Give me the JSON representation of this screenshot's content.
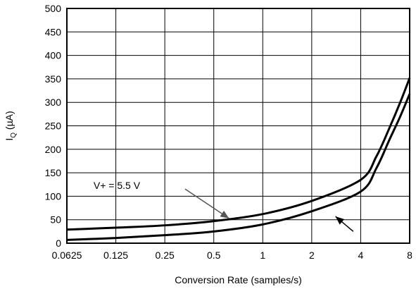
{
  "chart_data": {
    "type": "line",
    "xlabel": "Conversion Rate (samples/s)",
    "ylabel": {
      "main": "I",
      "sub": "Q",
      "unit": " (µA)"
    },
    "x_scale": "log2",
    "xlim": [
      0.0625,
      8
    ],
    "ylim": [
      0,
      500
    ],
    "x_ticks": [
      0.0625,
      0.125,
      0.25,
      0.5,
      1,
      2,
      4,
      8
    ],
    "x_tick_labels": [
      "0.0625",
      "0.125",
      "0.25",
      "0.5",
      "1",
      "2",
      "4",
      "8"
    ],
    "y_ticks": [
      0,
      50,
      100,
      150,
      200,
      250,
      300,
      350,
      400,
      450,
      500
    ],
    "y_tick_labels": [
      "0",
      "50",
      "100",
      "150",
      "200",
      "250",
      "300",
      "350",
      "400",
      "450",
      "500"
    ],
    "grid": true,
    "series": [
      {
        "name": "V+ = 5.5 V",
        "x": [
          0.0625,
          0.125,
          0.25,
          0.5,
          1,
          2,
          4,
          5,
          6,
          7,
          8
        ],
        "y": [
          29,
          33,
          38,
          47,
          62,
          90,
          135,
          185,
          245,
          300,
          352
        ]
      },
      {
        "x": [
          0.0625,
          0.125,
          0.25,
          0.5,
          1,
          2,
          4,
          5,
          6,
          7,
          8
        ],
        "y": [
          7,
          11,
          17,
          25,
          40,
          68,
          110,
          160,
          220,
          270,
          318
        ]
      }
    ],
    "annotations": [
      {
        "text": "V+ = 5.5 V",
        "x": 0.35,
        "y": 123,
        "arrow_to": [
          0.62,
          53
        ]
      },
      {
        "text": "",
        "x": 3.6,
        "y": 25,
        "arrow_to": [
          2.8,
          57
        ]
      }
    ]
  }
}
